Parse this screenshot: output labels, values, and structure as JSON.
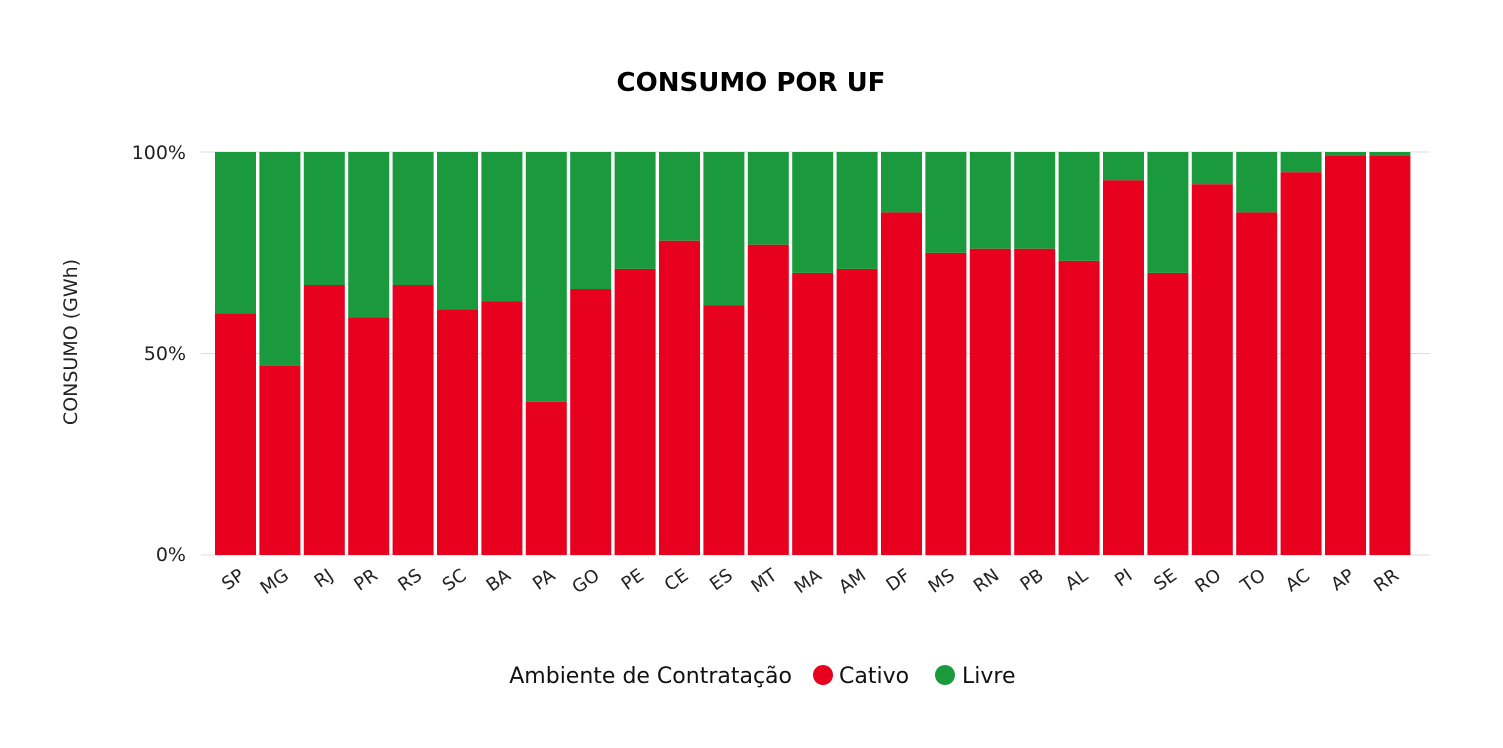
{
  "chart_data": {
    "type": "bar",
    "stacked": true,
    "title": "CONSUMO POR UF",
    "xlabel": "",
    "ylabel": "CONSUMO (GWh)",
    "ylim": [
      0,
      100
    ],
    "yticks": [
      "0%",
      "50%",
      "100%"
    ],
    "grid": true,
    "legend": {
      "title": "Ambiente de Contratação",
      "placement": "bottom-center"
    },
    "categories": [
      "SP",
      "MG",
      "RJ",
      "PR",
      "RS",
      "SC",
      "BA",
      "PA",
      "GO",
      "PE",
      "CE",
      "ES",
      "MT",
      "MA",
      "AM",
      "DF",
      "MS",
      "RN",
      "PB",
      "AL",
      "PI",
      "SE",
      "RO",
      "TO",
      "AC",
      "AP",
      "RR"
    ],
    "series": [
      {
        "name": "Cativo",
        "color": "#e8001f",
        "values": [
          60,
          47,
          67,
          59,
          67,
          61,
          63,
          38,
          66,
          71,
          78,
          62,
          77,
          70,
          71,
          85,
          75,
          76,
          76,
          73,
          93,
          70,
          92,
          85,
          95,
          99,
          99
        ]
      },
      {
        "name": "Livre",
        "color": "#1a9a3c",
        "values": [
          40,
          53,
          33,
          41,
          33,
          39,
          37,
          62,
          34,
          29,
          22,
          38,
          23,
          30,
          29,
          15,
          25,
          24,
          24,
          27,
          7,
          30,
          8,
          15,
          5,
          1,
          1
        ]
      }
    ]
  }
}
